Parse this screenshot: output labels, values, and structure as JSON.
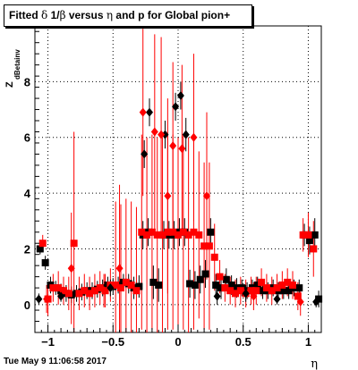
{
  "title": {
    "prefix": "Fitted ",
    "delta": "δ",
    "middle": " 1/",
    "beta": "β",
    "versus": " versus ",
    "eta": "η",
    "suffix": " and p for Global pion+"
  },
  "timestamp": "Tue May  9 11:06:58 2017",
  "colors": {
    "series_black": "#000000",
    "series_red": "#ff0000",
    "grid": "#000000",
    "background": "#ffffff"
  },
  "chart_data": {
    "type": "scatter",
    "xlabel": "η",
    "ylabel": "Z",
    "ylabel_subscript": "dBetainv",
    "xlim": [
      -1.1,
      1.1
    ],
    "ylim": [
      -1.0,
      10.0
    ],
    "grid": true,
    "x_ticks": [
      {
        "value": -1,
        "label": "−1"
      },
      {
        "value": -0.5,
        "label": "−0.5"
      },
      {
        "value": 0,
        "label": "0"
      },
      {
        "value": 0.5,
        "label": "0.5"
      },
      {
        "value": 1,
        "label": "1"
      }
    ],
    "y_ticks": [
      {
        "value": 0,
        "label": "0"
      },
      {
        "value": 2,
        "label": "2"
      },
      {
        "value": 4,
        "label": "4"
      },
      {
        "value": 6,
        "label": "6"
      },
      {
        "value": 8,
        "label": "8"
      }
    ],
    "series": [
      {
        "marker": "square",
        "color": "#000000",
        "points": [
          {
            "x": -1.06,
            "y": 2.0,
            "yerr": 0.2
          },
          {
            "x": -1.02,
            "y": 1.5,
            "yerr": 0.25
          },
          {
            "x": -0.98,
            "y": 0.7,
            "yerr": 0.3
          },
          {
            "x": -0.94,
            "y": 0.6,
            "yerr": 0.25
          },
          {
            "x": -0.9,
            "y": 0.5,
            "yerr": 0.25
          },
          {
            "x": -0.86,
            "y": 0.4,
            "yerr": 0.3
          },
          {
            "x": -0.82,
            "y": 0.35,
            "yerr": 0.3
          },
          {
            "x": -0.78,
            "y": 0.4,
            "yerr": 0.3
          },
          {
            "x": -0.74,
            "y": 0.45,
            "yerr": 0.3
          },
          {
            "x": -0.7,
            "y": 0.5,
            "yerr": 0.3
          },
          {
            "x": -0.66,
            "y": 0.5,
            "yerr": 0.3
          },
          {
            "x": -0.62,
            "y": 0.55,
            "yerr": 0.3
          },
          {
            "x": -0.58,
            "y": 0.6,
            "yerr": 0.3
          },
          {
            "x": -0.54,
            "y": 0.7,
            "yerr": 0.3
          },
          {
            "x": -0.5,
            "y": 0.65,
            "yerr": 0.3
          },
          {
            "x": -0.46,
            "y": 0.7,
            "yerr": 0.3
          },
          {
            "x": -0.42,
            "y": 0.8,
            "yerr": 0.3
          },
          {
            "x": -0.38,
            "y": 0.75,
            "yerr": 0.35
          },
          {
            "x": -0.34,
            "y": 0.6,
            "yerr": 0.4
          },
          {
            "x": -0.3,
            "y": 0.65,
            "yerr": 0.4
          },
          {
            "x": -0.27,
            "y": 2.5,
            "yerr": 0.5
          },
          {
            "x": -0.23,
            "y": 2.6,
            "yerr": 0.5
          },
          {
            "x": -0.19,
            "y": 0.8,
            "yerr": 0.6
          },
          {
            "x": -0.15,
            "y": 0.7,
            "yerr": 0.6
          },
          {
            "x": -0.11,
            "y": 2.5,
            "yerr": 0.5
          },
          {
            "x": -0.07,
            "y": 2.5,
            "yerr": 0.5
          },
          {
            "x": -0.03,
            "y": 2.5,
            "yerr": 0.5
          },
          {
            "x": 0.01,
            "y": 2.6,
            "yerr": 0.5
          },
          {
            "x": 0.05,
            "y": 2.6,
            "yerr": 0.5
          },
          {
            "x": 0.09,
            "y": 0.75,
            "yerr": 0.5
          },
          {
            "x": 0.13,
            "y": 0.7,
            "yerr": 0.5
          },
          {
            "x": 0.17,
            "y": 0.9,
            "yerr": 0.5
          },
          {
            "x": 0.21,
            "y": 1.1,
            "yerr": 0.5
          },
          {
            "x": 0.25,
            "y": 2.6,
            "yerr": 0.5
          },
          {
            "x": 0.29,
            "y": 0.7,
            "yerr": 0.4
          },
          {
            "x": 0.33,
            "y": 0.6,
            "yerr": 0.4
          },
          {
            "x": 0.37,
            "y": 0.9,
            "yerr": 0.4
          },
          {
            "x": 0.41,
            "y": 0.7,
            "yerr": 0.35
          },
          {
            "x": 0.45,
            "y": 0.6,
            "yerr": 0.35
          },
          {
            "x": 0.49,
            "y": 0.6,
            "yerr": 0.3
          },
          {
            "x": 0.53,
            "y": 0.5,
            "yerr": 0.3
          },
          {
            "x": 0.57,
            "y": 0.6,
            "yerr": 0.3
          },
          {
            "x": 0.61,
            "y": 0.7,
            "yerr": 0.3
          },
          {
            "x": 0.65,
            "y": 0.5,
            "yerr": 0.3
          },
          {
            "x": 0.69,
            "y": 0.5,
            "yerr": 0.3
          },
          {
            "x": 0.73,
            "y": 0.6,
            "yerr": 0.3
          },
          {
            "x": 0.77,
            "y": 0.5,
            "yerr": 0.3
          },
          {
            "x": 0.81,
            "y": 0.5,
            "yerr": 0.3
          },
          {
            "x": 0.85,
            "y": 0.5,
            "yerr": 0.3
          },
          {
            "x": 0.89,
            "y": 0.6,
            "yerr": 0.3
          },
          {
            "x": 0.93,
            "y": 0.6,
            "yerr": 0.3
          },
          {
            "x": 0.97,
            "y": 2.5,
            "yerr": 0.4
          },
          {
            "x": 1.01,
            "y": 2.3,
            "yerr": 0.5
          },
          {
            "x": 1.05,
            "y": 2.5,
            "yerr": 0.6
          },
          {
            "x": 1.08,
            "y": 0.2,
            "yerr": 0.3
          }
        ]
      },
      {
        "marker": "square",
        "color": "#ff0000",
        "points": [
          {
            "x": -1.04,
            "y": 2.2,
            "yerr": 0.3
          },
          {
            "x": -1.0,
            "y": 0.2,
            "yerr": 0.6
          },
          {
            "x": -0.96,
            "y": 0.6,
            "yerr": 0.5
          },
          {
            "x": -0.92,
            "y": 0.6,
            "yerr": 0.6
          },
          {
            "x": -0.88,
            "y": 0.5,
            "yerr": 0.5
          },
          {
            "x": -0.84,
            "y": 0.4,
            "yerr": 0.6
          },
          {
            "x": -0.8,
            "y": 2.2,
            "yerr": 4.0
          },
          {
            "x": -0.76,
            "y": 0.4,
            "yerr": 0.6
          },
          {
            "x": -0.72,
            "y": 0.5,
            "yerr": 0.6
          },
          {
            "x": -0.68,
            "y": 0.4,
            "yerr": 0.6
          },
          {
            "x": -0.64,
            "y": 0.5,
            "yerr": 0.6
          },
          {
            "x": -0.6,
            "y": 0.6,
            "yerr": 0.6
          },
          {
            "x": -0.56,
            "y": 0.5,
            "yerr": 0.6
          },
          {
            "x": -0.52,
            "y": 0.7,
            "yerr": 0.6
          },
          {
            "x": -0.48,
            "y": 0.7,
            "yerr": 3.0
          },
          {
            "x": -0.44,
            "y": 0.6,
            "yerr": 3.0
          },
          {
            "x": -0.4,
            "y": 0.8,
            "yerr": 3.0
          },
          {
            "x": -0.36,
            "y": 0.7,
            "yerr": 3.0
          },
          {
            "x": -0.32,
            "y": 0.5,
            "yerr": 3.0
          },
          {
            "x": -0.28,
            "y": 2.6,
            "yerr": 3.5
          },
          {
            "x": -0.24,
            "y": 2.5,
            "yerr": 3.5
          },
          {
            "x": -0.2,
            "y": 2.6,
            "yerr": 3.5
          },
          {
            "x": -0.16,
            "y": 2.5,
            "yerr": 3.5
          },
          {
            "x": -0.12,
            "y": 2.5,
            "yerr": 3.5
          },
          {
            "x": -0.08,
            "y": 2.6,
            "yerr": 3.5
          },
          {
            "x": -0.04,
            "y": 2.6,
            "yerr": 3.5
          },
          {
            "x": 0.0,
            "y": 2.5,
            "yerr": 3.5
          },
          {
            "x": 0.04,
            "y": 2.6,
            "yerr": 3.5
          },
          {
            "x": 0.08,
            "y": 2.5,
            "yerr": 3.5
          },
          {
            "x": 0.12,
            "y": 2.6,
            "yerr": 3.5
          },
          {
            "x": 0.16,
            "y": 2.5,
            "yerr": 3.0
          },
          {
            "x": 0.2,
            "y": 2.1,
            "yerr": 3.0
          },
          {
            "x": 0.24,
            "y": 2.1,
            "yerr": 3.0
          },
          {
            "x": 0.28,
            "y": 1.7,
            "yerr": 1.2
          },
          {
            "x": 0.32,
            "y": 1.0,
            "yerr": 0.6
          },
          {
            "x": 0.36,
            "y": 0.6,
            "yerr": 0.5
          },
          {
            "x": 0.4,
            "y": 0.5,
            "yerr": 0.5
          },
          {
            "x": 0.44,
            "y": 0.4,
            "yerr": 0.5
          },
          {
            "x": 0.48,
            "y": 0.5,
            "yerr": 0.5
          },
          {
            "x": 0.52,
            "y": 0.4,
            "yerr": 0.5
          },
          {
            "x": 0.56,
            "y": 0.5,
            "yerr": 0.5
          },
          {
            "x": 0.6,
            "y": 0.5,
            "yerr": 0.5
          },
          {
            "x": 0.64,
            "y": 0.8,
            "yerr": 0.5
          },
          {
            "x": 0.68,
            "y": 0.6,
            "yerr": 0.5
          },
          {
            "x": 0.72,
            "y": 0.5,
            "yerr": 0.5
          },
          {
            "x": 0.76,
            "y": 0.6,
            "yerr": 0.5
          },
          {
            "x": 0.8,
            "y": 0.7,
            "yerr": 0.5
          },
          {
            "x": 0.84,
            "y": 0.8,
            "yerr": 0.5
          },
          {
            "x": 0.88,
            "y": 0.7,
            "yerr": 0.5
          },
          {
            "x": 0.92,
            "y": 0.3,
            "yerr": 0.5
          },
          {
            "x": 0.96,
            "y": 2.5,
            "yerr": 0.6
          },
          {
            "x": 1.0,
            "y": 2.5,
            "yerr": 0.8
          },
          {
            "x": 1.04,
            "y": 2.0,
            "yerr": 1.0
          }
        ]
      },
      {
        "marker": "diamond",
        "color": "#000000",
        "points": [
          {
            "x": -1.07,
            "y": 0.2,
            "yerr": 0.2
          },
          {
            "x": -0.9,
            "y": 0.3,
            "yerr": 0.2
          },
          {
            "x": -0.52,
            "y": 0.6,
            "yerr": 0.3
          },
          {
            "x": -0.26,
            "y": 5.4,
            "yerr": 0.5
          },
          {
            "x": -0.22,
            "y": 6.9,
            "yerr": 0.5
          },
          {
            "x": -0.1,
            "y": 6.1,
            "yerr": 0.5
          },
          {
            "x": -0.02,
            "y": 7.1,
            "yerr": 0.5
          },
          {
            "x": 0.02,
            "y": 7.5,
            "yerr": 0.5
          },
          {
            "x": 0.06,
            "y": 6.1,
            "yerr": 0.6
          },
          {
            "x": 0.3,
            "y": 0.3,
            "yerr": 0.3
          },
          {
            "x": 0.52,
            "y": 0.4,
            "yerr": 0.3
          },
          {
            "x": 0.76,
            "y": 0.2,
            "yerr": 0.2
          },
          {
            "x": 1.06,
            "y": 0.1,
            "yerr": 0.2
          }
        ]
      },
      {
        "marker": "diamond",
        "color": "#ff0000",
        "points": [
          {
            "x": -1.01,
            "y": 0.2,
            "yerr": 0.5
          },
          {
            "x": -0.82,
            "y": 1.3,
            "yerr": 2.0
          },
          {
            "x": -0.57,
            "y": 0.5,
            "yerr": 0.6
          },
          {
            "x": -0.45,
            "y": 1.3,
            "yerr": 3.0
          },
          {
            "x": -0.27,
            "y": 6.9,
            "yerr": 3.0
          },
          {
            "x": -0.18,
            "y": 6.2,
            "yerr": 3.5
          },
          {
            "x": -0.13,
            "y": 6.1,
            "yerr": 3.5
          },
          {
            "x": -0.08,
            "y": 3.9,
            "yerr": 3.5
          },
          {
            "x": -0.04,
            "y": 5.7,
            "yerr": 3.0
          },
          {
            "x": 0.03,
            "y": 5.6,
            "yerr": 3.0
          },
          {
            "x": 0.12,
            "y": 6.0,
            "yerr": 3.0
          },
          {
            "x": 0.22,
            "y": 3.9,
            "yerr": 3.0
          },
          {
            "x": 0.58,
            "y": 0.3,
            "yerr": 0.5
          },
          {
            "x": 0.94,
            "y": 0.1,
            "yerr": 0.5
          }
        ]
      }
    ]
  }
}
